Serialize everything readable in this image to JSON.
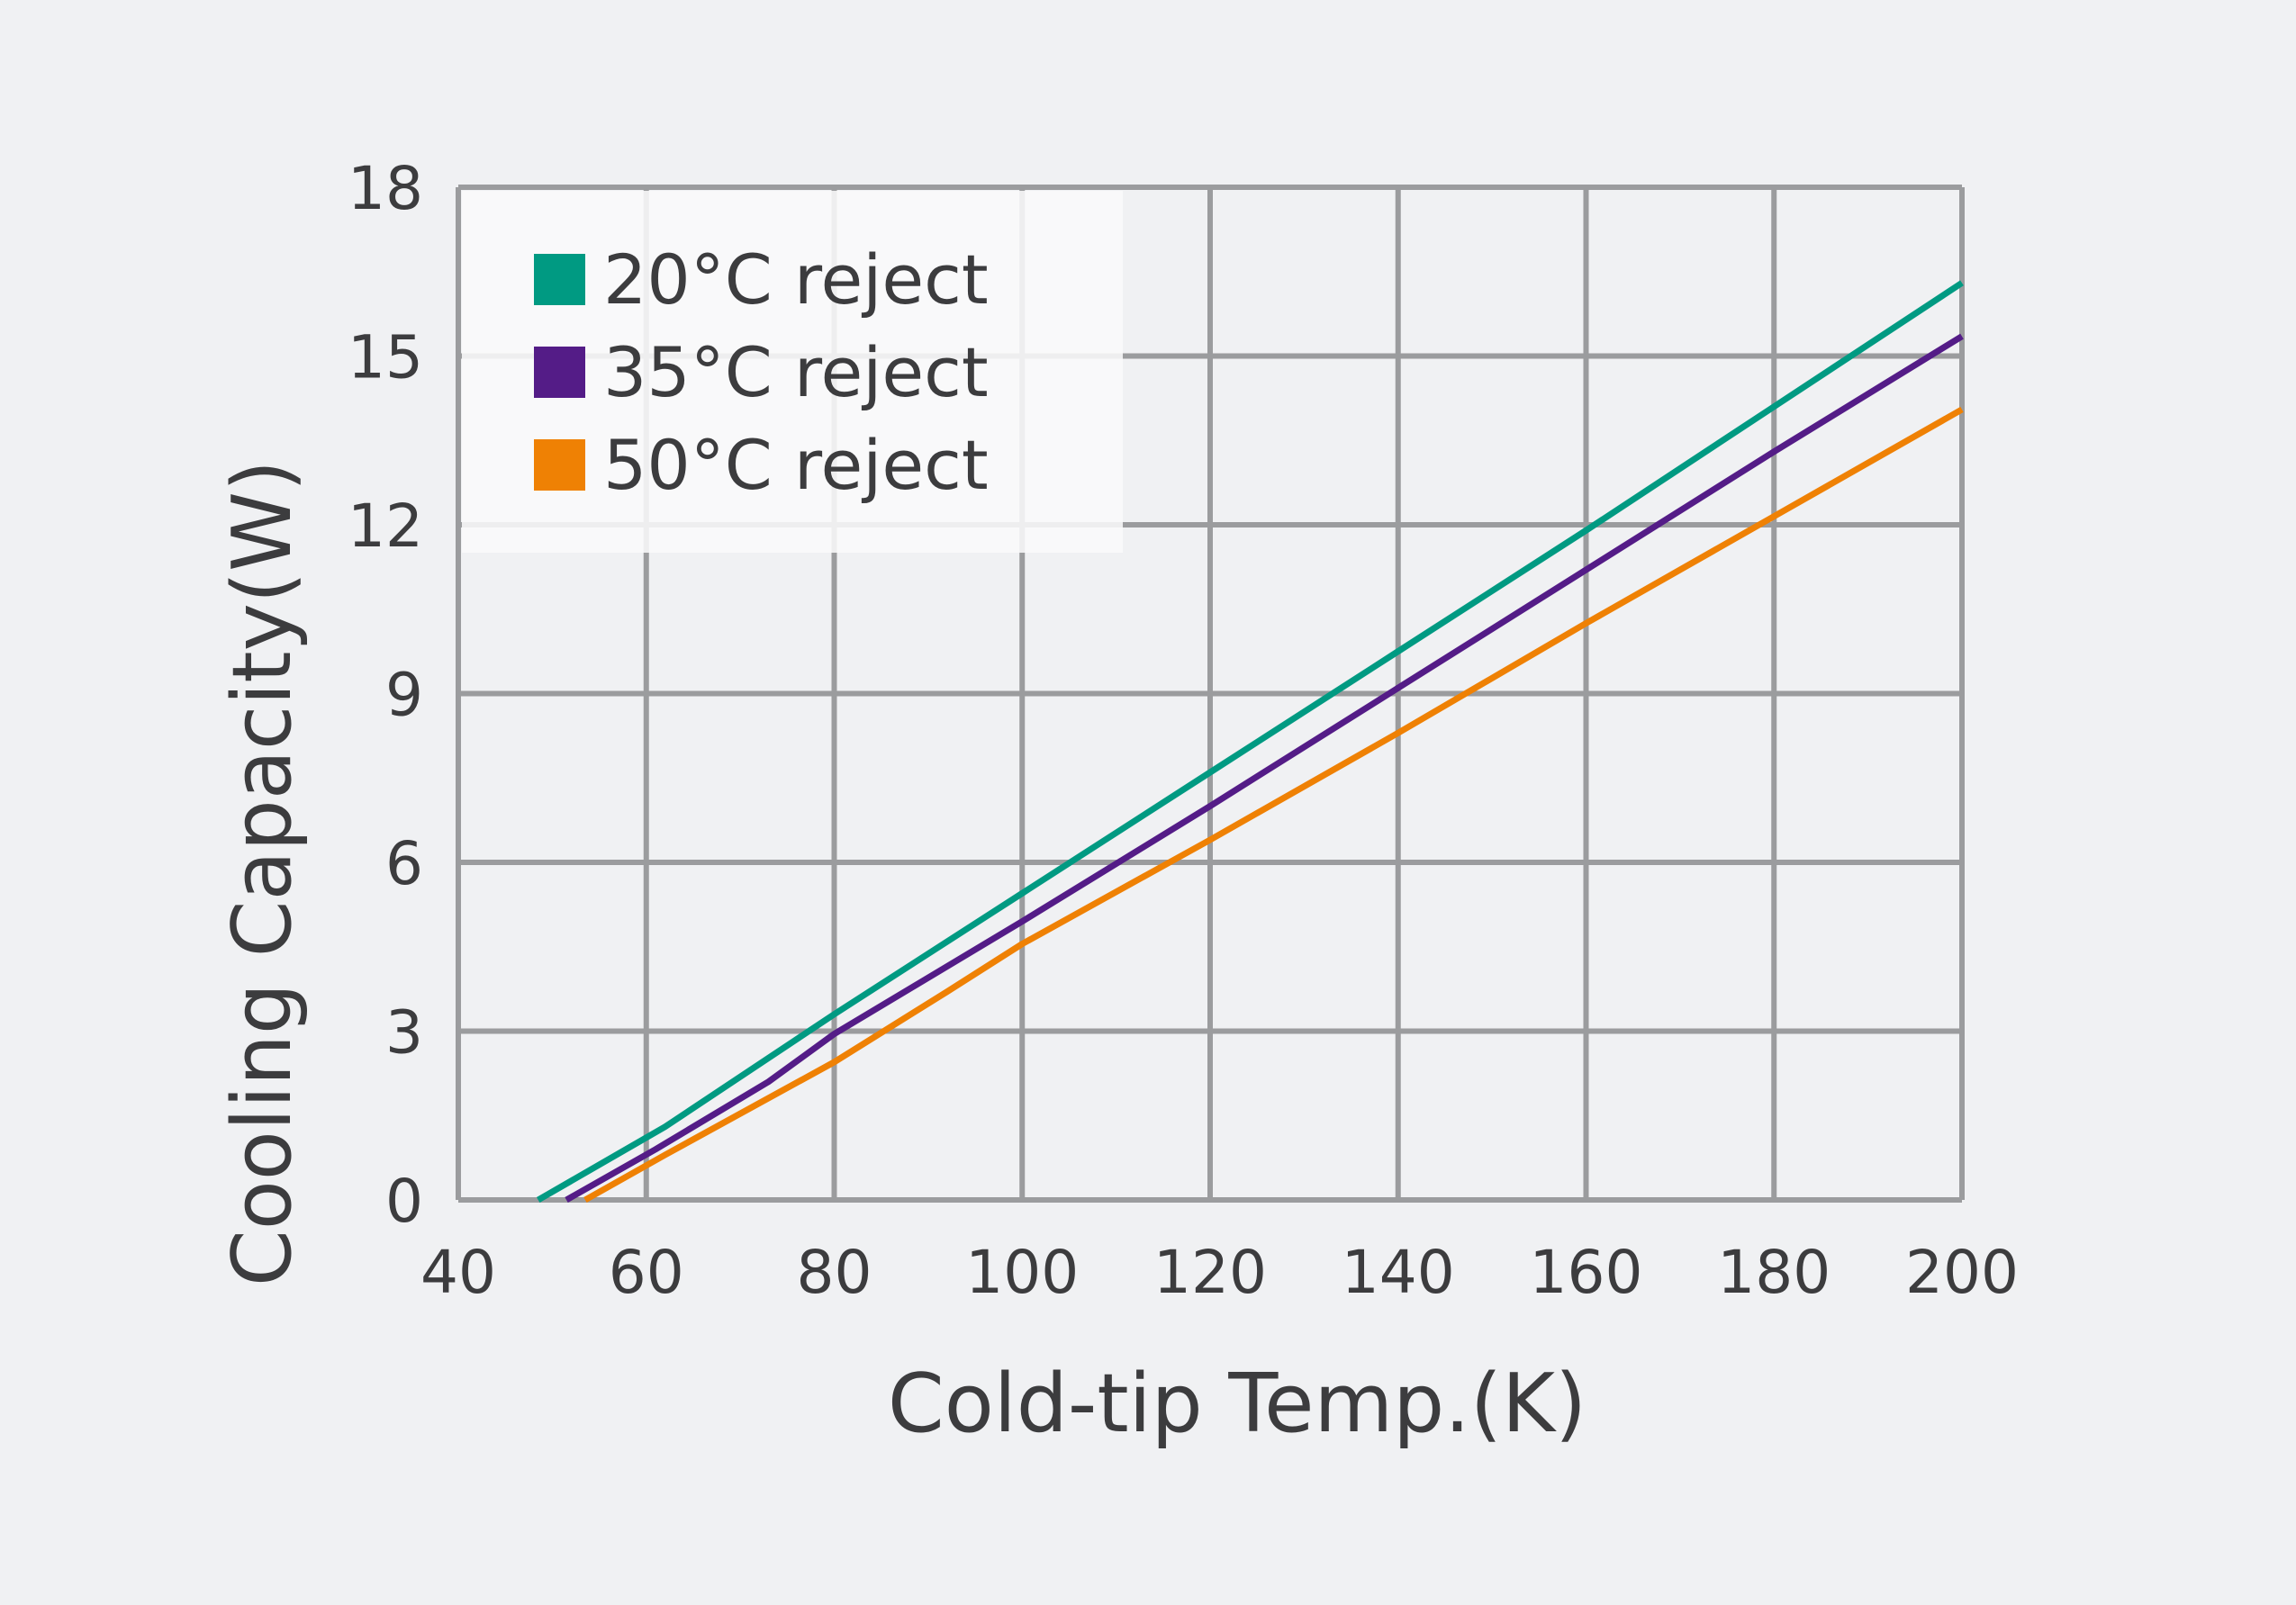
{
  "colors": {
    "background": "#f0f1f3",
    "grid": "#9b9c9e",
    "text": "#3c3c3e",
    "legend_bg": "#f9f9fa"
  },
  "chart_data": {
    "type": "line",
    "title": "",
    "xlabel": "Cold-tip Temp.(K)",
    "ylabel": "Cooling Capacity(W)",
    "xlim": [
      40,
      200
    ],
    "ylim": [
      0,
      18
    ],
    "xticks": [
      40,
      60,
      80,
      100,
      120,
      140,
      160,
      180,
      200
    ],
    "yticks": [
      0,
      3,
      6,
      9,
      12,
      15,
      18
    ],
    "xtick_labels": [
      "40",
      "60",
      "80",
      "100",
      "120",
      "140",
      "160",
      "180",
      "200"
    ],
    "ytick_labels": [
      "0",
      "3",
      "6",
      "9",
      "12",
      "15",
      "18"
    ],
    "grid": true,
    "legend_position": "top-left",
    "series": [
      {
        "name": "20°C reject",
        "color": "#009a82",
        "x": [
          48.5,
          62,
          80,
          100,
          120,
          140,
          160,
          180,
          200
        ],
        "y": [
          0,
          1.3,
          3.3,
          5.45,
          7.6,
          9.75,
          11.9,
          14.1,
          16.3
        ]
      },
      {
        "name": "35°C reject",
        "color": "#541c87",
        "x": [
          51.5,
          61,
          73,
          80,
          100,
          120,
          140,
          160,
          180,
          200
        ],
        "y": [
          0,
          0.9,
          2.1,
          2.95,
          4.95,
          7.0,
          9.1,
          11.2,
          13.3,
          15.35
        ]
      },
      {
        "name": "50°C reject",
        "color": "#ef8104",
        "x": [
          53.5,
          62,
          80,
          92,
          100,
          120,
          140,
          160,
          180,
          200
        ],
        "y": [
          0,
          0.8,
          2.45,
          3.7,
          4.55,
          6.4,
          8.3,
          10.25,
          12.15,
          14.05
        ]
      }
    ]
  }
}
